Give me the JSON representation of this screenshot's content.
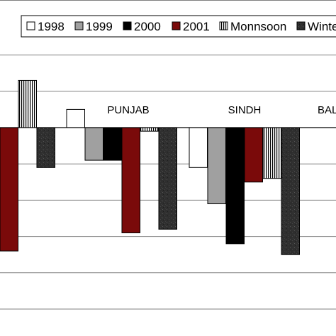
{
  "chart_data": {
    "type": "bar",
    "categories": [
      "",
      "PUNJAB",
      "SINDH",
      "BAL"
    ],
    "series": [
      {
        "name": "1998",
        "values": [
          null,
          0.5,
          -1.1,
          null
        ],
        "color": "#ffffff",
        "pattern": "none"
      },
      {
        "name": "1999",
        "values": [
          null,
          -0.9,
          -2.1,
          null
        ],
        "color": "#a0a0a0",
        "pattern": "none"
      },
      {
        "name": "2000",
        "values": [
          null,
          -0.9,
          -3.2,
          null
        ],
        "color": "#000000",
        "pattern": "none"
      },
      {
        "name": "2001",
        "values": [
          -3.4,
          -2.9,
          -1.5,
          null
        ],
        "color": "#7a0a0a",
        "pattern": "none"
      },
      {
        "name": "Monnsoon",
        "values": [
          1.3,
          -0.1,
          -1.4,
          null
        ],
        "color": "#ffffff",
        "pattern": "vertical-stripes"
      },
      {
        "name": "Winter",
        "values": [
          -1.1,
          -2.8,
          -3.5,
          null
        ],
        "color": "#333333",
        "pattern": "dark-texture"
      }
    ],
    "legend_labels": [
      "1998",
      "1999",
      "2000",
      "2001",
      "Monnsoon",
      "Winte"
    ],
    "ylim": [
      -5.0,
      2.0
    ],
    "grid": true,
    "legend_position": "top",
    "title": "",
    "xlabel": "",
    "ylabel": ""
  }
}
